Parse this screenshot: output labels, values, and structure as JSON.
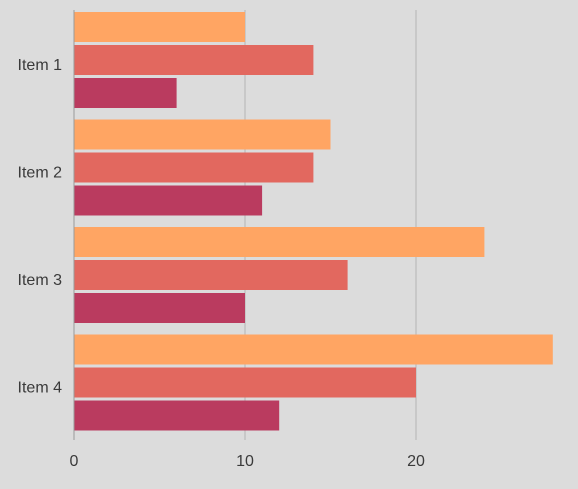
{
  "chart_data": {
    "type": "bar",
    "orientation": "horizontal",
    "categories": [
      "Item 1",
      "Item 2",
      "Item 3",
      "Item 4"
    ],
    "series": [
      {
        "values": [
          10,
          15,
          24,
          28
        ],
        "color": "#ffa563"
      },
      {
        "values": [
          14,
          14,
          16,
          20
        ],
        "color": "#e2685f"
      },
      {
        "values": [
          6,
          11,
          10,
          12
        ],
        "color": "#ba3b5f"
      }
    ],
    "x_ticks": [
      0,
      10,
      20,
      30
    ],
    "xlim": [
      0,
      30
    ],
    "grid": "vertical",
    "legend": "none",
    "title": "",
    "xlabel": "",
    "ylabel": ""
  },
  "colors": {
    "background": "#dcdcdc",
    "gridline": "#b4b4b4",
    "axis": "#9a9a9a",
    "text": "#3a3a3a"
  }
}
